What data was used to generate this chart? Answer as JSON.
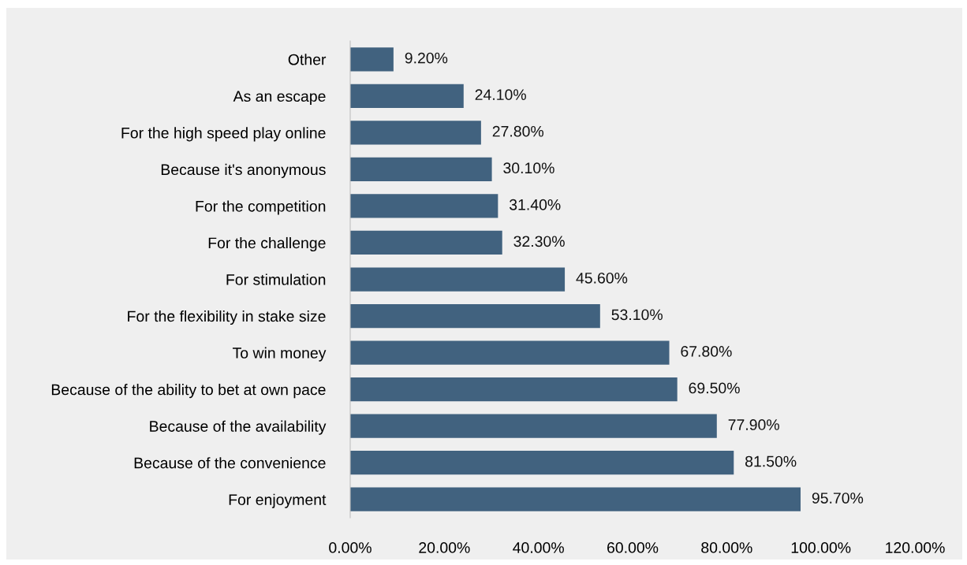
{
  "chart_data": {
    "type": "bar",
    "orientation": "horizontal",
    "categories": [
      "Other",
      "As an escape",
      "For the high speed play online",
      "Because it's anonymous",
      "For the competition",
      "For the challenge",
      "For stimulation",
      "For the flexibility in stake size",
      "To win money",
      "Because of the ability to bet at own pace",
      "Because of the availability",
      "Because of the convenience",
      "For enjoyment"
    ],
    "values": [
      9.2,
      24.1,
      27.8,
      30.1,
      31.4,
      32.3,
      45.6,
      53.1,
      67.8,
      69.5,
      77.9,
      81.5,
      95.7
    ],
    "value_labels": [
      "9.20%",
      "24.10%",
      "27.80%",
      "30.10%",
      "31.40%",
      "32.30%",
      "45.60%",
      "53.10%",
      "67.80%",
      "69.50%",
      "77.90%",
      "81.50%",
      "95.70%"
    ],
    "color": "#41627f",
    "xlim": [
      0,
      120
    ],
    "xticks": [
      {
        "value": 0,
        "label": "0.00%"
      },
      {
        "value": 20,
        "label": "20.00%"
      },
      {
        "value": 40,
        "label": "40.00%"
      },
      {
        "value": 60,
        "label": "60.00%"
      },
      {
        "value": 80,
        "label": "80.00%"
      },
      {
        "value": 100,
        "label": "100.00%"
      },
      {
        "value": 120,
        "label": "120.00%"
      }
    ],
    "grid": false,
    "legend": false
  }
}
